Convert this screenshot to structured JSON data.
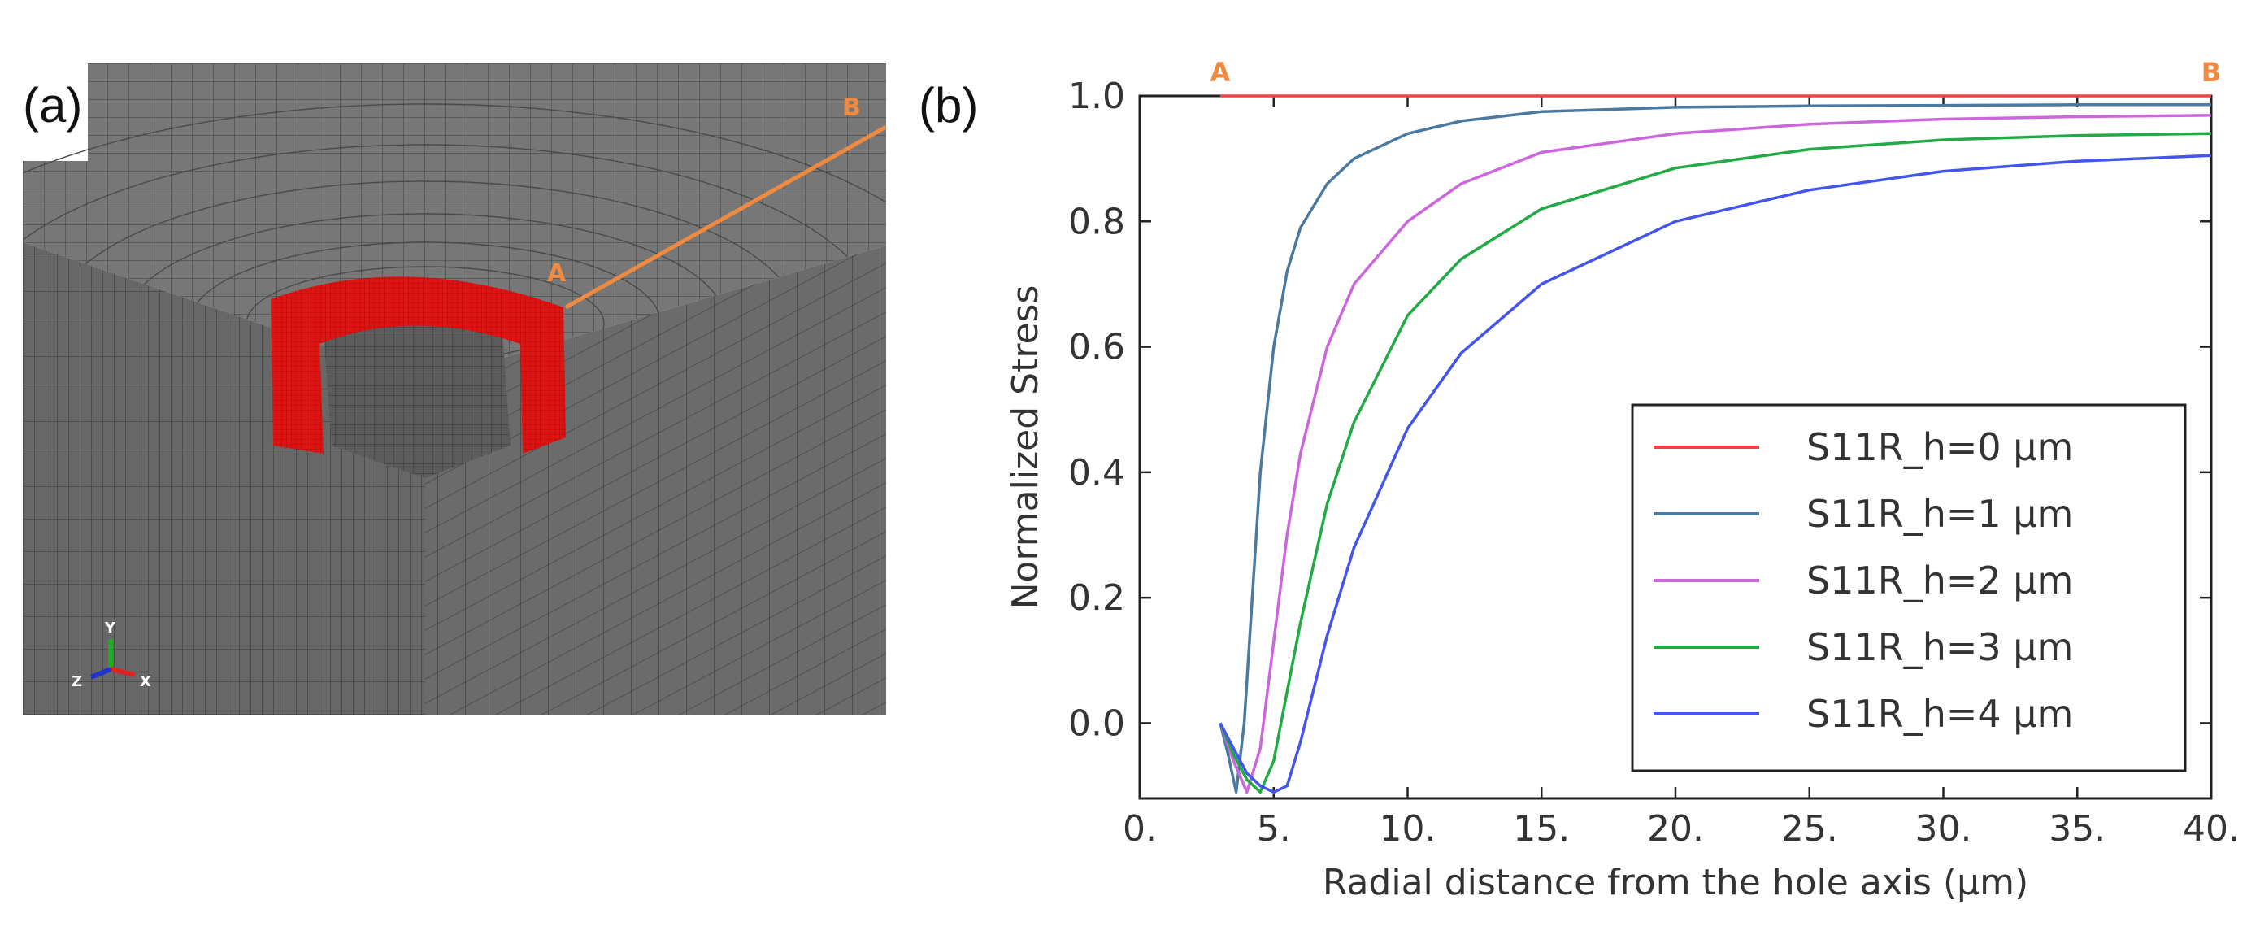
{
  "panel_a": {
    "label": "(a)",
    "point_a": "A",
    "point_b": "B",
    "axis_triad": {
      "y": "Y",
      "z": "Z",
      "x": "X"
    },
    "colors": {
      "mesh": "#5a5a5a",
      "ring": "#dd1111",
      "path": "#f08a40",
      "axis_y": "#22aa22",
      "axis_x": "#dd2222",
      "axis_z": "#2233cc"
    }
  },
  "panel_b": {
    "label": "(b)"
  },
  "chart_data": {
    "type": "line",
    "title": "",
    "xlabel": "Radial distance from the hole axis (µm)",
    "ylabel": "Normalized Stress",
    "xlim": [
      0,
      40
    ],
    "ylim": [
      -0.12,
      1.0
    ],
    "xticks": [
      0,
      5,
      10,
      15,
      20,
      25,
      30,
      35,
      40
    ],
    "xtick_labels": [
      "0.",
      "5.",
      "10.",
      "15.",
      "20.",
      "25.",
      "30.",
      "35.",
      "40."
    ],
    "yticks": [
      0.0,
      0.2,
      0.4,
      0.6,
      0.8,
      1.0
    ],
    "ytick_labels": [
      "0.0",
      "0.2",
      "0.4",
      "0.6",
      "0.8",
      "1.0"
    ],
    "annotations": [
      {
        "text": "A",
        "x": 3,
        "color": "#f08a40"
      },
      {
        "text": "B",
        "x": 40,
        "color": "#f08a40"
      }
    ],
    "legend_position": "lower-right",
    "series": [
      {
        "name": "S11R_h=0 µm",
        "color": "#ee4444",
        "x": [
          3,
          5,
          10,
          20,
          30,
          40
        ],
        "y": [
          1.0,
          1.0,
          1.0,
          1.0,
          1.0,
          1.0
        ]
      },
      {
        "name": "S11R_h=1 µm",
        "color": "#4a7aa0",
        "x": [
          3.0,
          3.3,
          3.6,
          3.9,
          4.2,
          4.5,
          5.0,
          5.5,
          6.0,
          7.0,
          8.0,
          10.0,
          12.0,
          15.0,
          20.0,
          25.0,
          30.0,
          35.0,
          40.0
        ],
        "y": [
          0.0,
          -0.05,
          -0.11,
          0.0,
          0.2,
          0.4,
          0.6,
          0.72,
          0.79,
          0.86,
          0.9,
          0.94,
          0.96,
          0.975,
          0.982,
          0.984,
          0.985,
          0.986,
          0.986
        ]
      },
      {
        "name": "S11R_h=2 µm",
        "color": "#cc66dd",
        "x": [
          3.0,
          3.5,
          4.0,
          4.5,
          5.0,
          5.5,
          6.0,
          7.0,
          8.0,
          10.0,
          12.0,
          15.0,
          20.0,
          25.0,
          30.0,
          35.0,
          40.0
        ],
        "y": [
          0.0,
          -0.06,
          -0.11,
          -0.04,
          0.13,
          0.3,
          0.43,
          0.6,
          0.7,
          0.8,
          0.86,
          0.91,
          0.94,
          0.955,
          0.963,
          0.967,
          0.969
        ]
      },
      {
        "name": "S11R_h=3 µm",
        "color": "#22aa44",
        "x": [
          3.0,
          3.5,
          4.0,
          4.5,
          5.0,
          5.5,
          6.0,
          7.0,
          8.0,
          10.0,
          12.0,
          15.0,
          20.0,
          25.0,
          30.0,
          35.0,
          40.0
        ],
        "y": [
          0.0,
          -0.05,
          -0.09,
          -0.11,
          -0.06,
          0.05,
          0.16,
          0.35,
          0.48,
          0.65,
          0.74,
          0.82,
          0.885,
          0.915,
          0.93,
          0.937,
          0.94
        ]
      },
      {
        "name": "S11R_h=4 µm",
        "color": "#4455ee",
        "x": [
          3.0,
          3.5,
          4.0,
          4.5,
          5.0,
          5.5,
          6.0,
          7.0,
          8.0,
          10.0,
          12.0,
          15.0,
          20.0,
          25.0,
          30.0,
          35.0,
          40.0
        ],
        "y": [
          0.0,
          -0.04,
          -0.08,
          -0.1,
          -0.11,
          -0.1,
          -0.03,
          0.14,
          0.28,
          0.47,
          0.59,
          0.7,
          0.8,
          0.85,
          0.88,
          0.896,
          0.905
        ]
      }
    ]
  }
}
